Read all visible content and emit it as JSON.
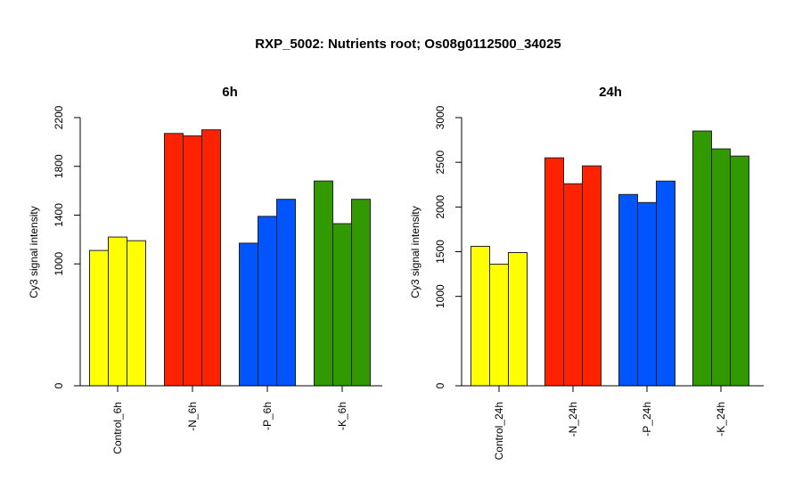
{
  "figure": {
    "title": "RXP_5002: Nutrients root; Os08g0112500_34025"
  },
  "chart_data": [
    {
      "type": "bar",
      "title": "6h",
      "xlabel": "",
      "ylabel": "Cy3 signal intensity",
      "ylim": [
        0,
        2200
      ],
      "yticks": [
        0,
        1000,
        1400,
        1800,
        2200
      ],
      "categories": [
        "Control_6h",
        "-N_6h",
        "-P_6h",
        "-K_6h"
      ],
      "category_colors": [
        "#ffff00",
        "#ff2200",
        "#0055ff",
        "#339900"
      ],
      "values": [
        [
          1110,
          1220,
          1190
        ],
        [
          2070,
          2050,
          2100
        ],
        [
          1170,
          1390,
          1530
        ],
        [
          1680,
          1330,
          1530
        ]
      ],
      "grid": false,
      "legend": "none"
    },
    {
      "type": "bar",
      "title": "24h",
      "xlabel": "",
      "ylabel": "Cy3 signal intensity",
      "ylim": [
        0,
        3000
      ],
      "yticks": [
        0,
        1000,
        1500,
        2000,
        2500,
        3000
      ],
      "categories": [
        "Control_24h",
        "-N_24h",
        "-P_24h",
        "-K_24h"
      ],
      "category_colors": [
        "#ffff00",
        "#ff2200",
        "#0055ff",
        "#339900"
      ],
      "values": [
        [
          1560,
          1360,
          1490
        ],
        [
          2550,
          2260,
          2460
        ],
        [
          2140,
          2050,
          2290
        ],
        [
          2850,
          2650,
          2570
        ]
      ],
      "grid": false,
      "legend": "none"
    }
  ]
}
